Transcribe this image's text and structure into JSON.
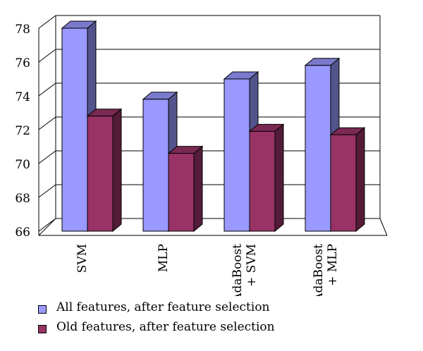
{
  "chart_data": {
    "type": "bar",
    "categories": [
      "SVM",
      "MLP",
      "AdaBoost\n+ SVM",
      "AdaBoost\n+ MLP"
    ],
    "series": [
      {
        "name": "All features, after feature selection",
        "color": "#9999ff",
        "values": [
          78.0,
          73.8,
          75.0,
          75.8
        ]
      },
      {
        "name": "Old features, after feature selection",
        "color": "#993366",
        "values": [
          72.8,
          70.6,
          71.9,
          71.7
        ]
      }
    ],
    "ylim": [
      66,
      78
    ],
    "yticks": [
      66,
      68,
      70,
      72,
      74,
      76,
      78
    ],
    "grid": true,
    "legend": "bottom",
    "title": "",
    "xlabel": "",
    "ylabel": ""
  }
}
